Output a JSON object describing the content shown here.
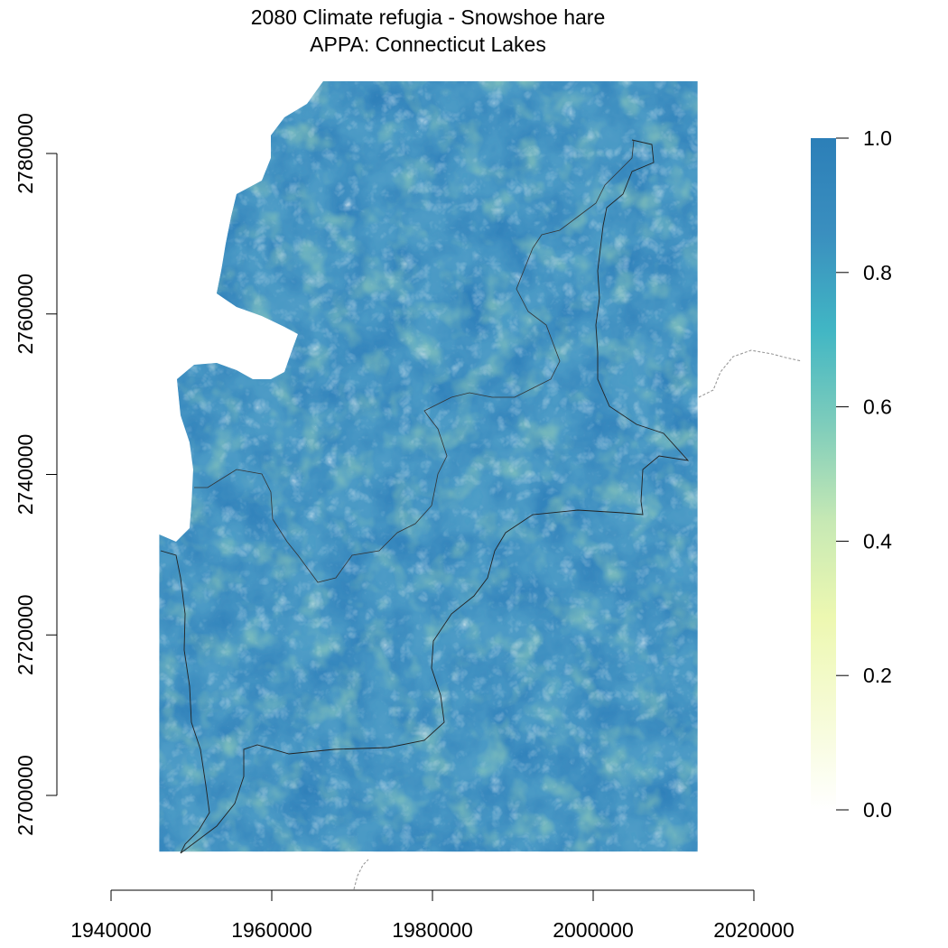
{
  "title": {
    "line1": "2080 Climate refugia - Snowshoe hare",
    "line2": "APPA: Connecticut Lakes"
  },
  "chart_data": {
    "type": "heatmap",
    "x_axis": {
      "range": [
        1940000,
        2020000
      ],
      "ticks": [
        1940000,
        1960000,
        1980000,
        2000000,
        2020000
      ],
      "tick_labels": [
        "1940000",
        "1960000",
        "1980000",
        "2000000",
        "2020000"
      ]
    },
    "y_axis": {
      "range": [
        2700000,
        2780000
      ],
      "ticks": [
        2700000,
        2720000,
        2740000,
        2760000,
        2780000
      ],
      "tick_labels": [
        "2700000",
        "2720000",
        "2740000",
        "2760000",
        "2780000"
      ]
    },
    "raster_extent": {
      "xmin": 1946000,
      "xmax": 2013000,
      "ymin": 2693000,
      "ymax": 2789000
    },
    "legend": {
      "placement": "right",
      "range": [
        0,
        1
      ],
      "ticks": [
        0.0,
        0.2,
        0.4,
        0.6,
        0.8,
        1.0
      ],
      "tick_labels": [
        "0.0",
        "0.2",
        "0.4",
        "0.6",
        "0.8",
        "1.0"
      ],
      "colors": [
        "#ffffff",
        "#f6fbd6",
        "#edf8b1",
        "#c7e9b4",
        "#7fcdbb",
        "#41b6c4",
        "#3a8fbf",
        "#2c7fb8"
      ]
    },
    "grid": false
  }
}
